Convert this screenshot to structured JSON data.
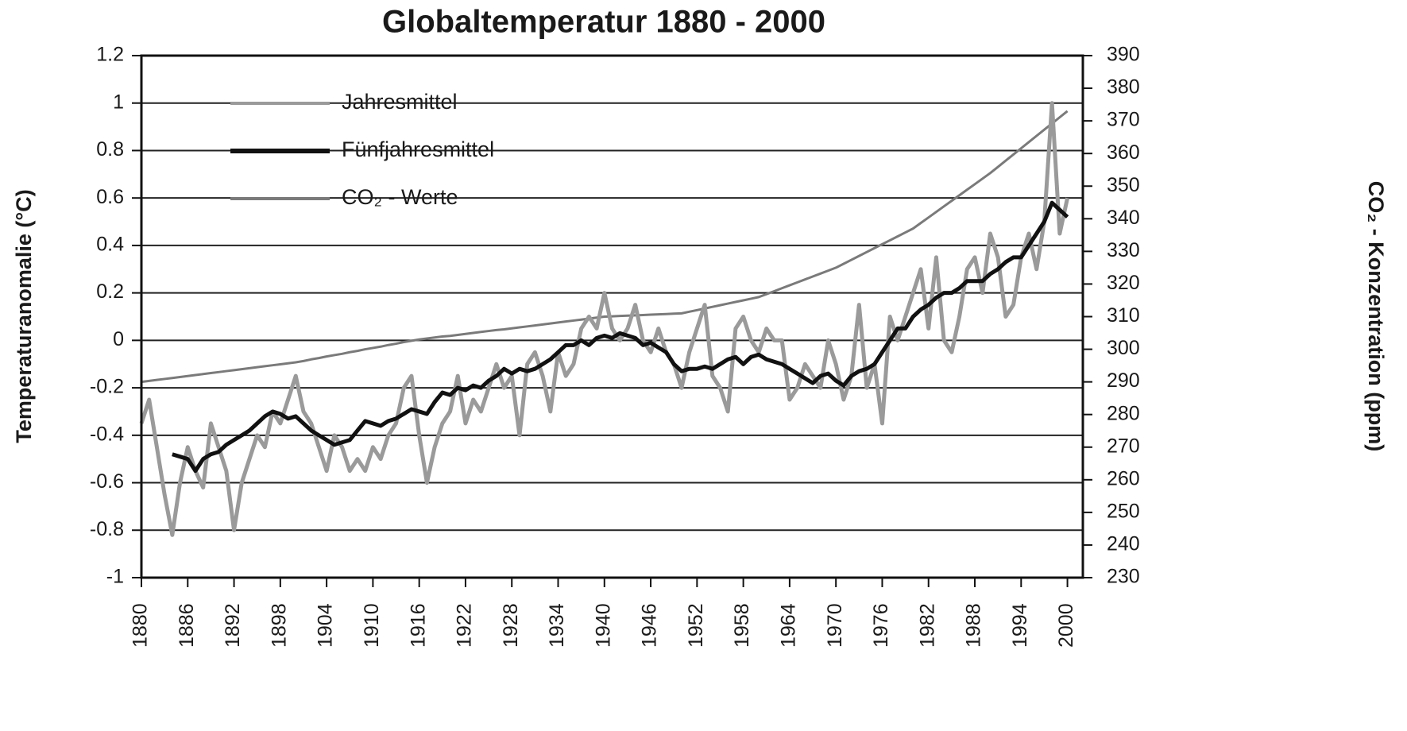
{
  "chart_data": {
    "type": "line",
    "title": "Globaltemperatur 1880 - 2000",
    "ylabel": "Temperaturanomalie (°C)",
    "y2label": "CO₂ - Konzentration (ppm)",
    "legend": "upper left",
    "grid": true,
    "x": [
      1880,
      1881,
      1882,
      1883,
      1884,
      1885,
      1886,
      1887,
      1888,
      1889,
      1890,
      1891,
      1892,
      1893,
      1894,
      1895,
      1896,
      1897,
      1898,
      1899,
      1900,
      1901,
      1902,
      1903,
      1904,
      1905,
      1906,
      1907,
      1908,
      1909,
      1910,
      1911,
      1912,
      1913,
      1914,
      1915,
      1916,
      1917,
      1918,
      1919,
      1920,
      1921,
      1922,
      1923,
      1924,
      1925,
      1926,
      1927,
      1928,
      1929,
      1930,
      1931,
      1932,
      1933,
      1934,
      1935,
      1936,
      1937,
      1938,
      1939,
      1940,
      1941,
      1942,
      1943,
      1944,
      1945,
      1946,
      1947,
      1948,
      1949,
      1950,
      1951,
      1952,
      1953,
      1954,
      1955,
      1956,
      1957,
      1958,
      1959,
      1960,
      1961,
      1962,
      1963,
      1964,
      1965,
      1966,
      1967,
      1968,
      1969,
      1970,
      1971,
      1972,
      1973,
      1974,
      1975,
      1976,
      1977,
      1978,
      1979,
      1980,
      1981,
      1982,
      1983,
      1984,
      1985,
      1986,
      1987,
      1988,
      1989,
      1990,
      1991,
      1992,
      1993,
      1994,
      1995,
      1996,
      1997,
      1998,
      1999,
      2000
    ],
    "xlim": [
      1880,
      2002
    ],
    "xticks": [
      1880,
      1886,
      1892,
      1898,
      1904,
      1910,
      1916,
      1922,
      1928,
      1934,
      1940,
      1946,
      1952,
      1958,
      1964,
      1970,
      1976,
      1982,
      1988,
      1994,
      2000
    ],
    "ylim": [
      -1,
      1.2
    ],
    "yticks": [
      -1,
      -0.8,
      -0.6,
      -0.4,
      -0.2,
      0,
      0.2,
      0.4,
      0.6,
      0.8,
      1,
      1.2
    ],
    "y2lim": [
      230,
      390
    ],
    "y2ticks": [
      230,
      240,
      250,
      260,
      270,
      280,
      290,
      300,
      310,
      320,
      330,
      340,
      350,
      360,
      370,
      380,
      390
    ],
    "series": [
      {
        "name": "Jahresmittel",
        "color": "#9a9a9a",
        "values": [
          -0.35,
          -0.25,
          -0.45,
          -0.65,
          -0.82,
          -0.6,
          -0.45,
          -0.55,
          -0.62,
          -0.35,
          -0.45,
          -0.55,
          -0.8,
          -0.6,
          -0.5,
          -0.4,
          -0.45,
          -0.3,
          -0.35,
          -0.25,
          -0.15,
          -0.3,
          -0.35,
          -0.45,
          -0.55,
          -0.4,
          -0.45,
          -0.55,
          -0.5,
          -0.55,
          -0.45,
          -0.5,
          -0.4,
          -0.35,
          -0.2,
          -0.15,
          -0.4,
          -0.6,
          -0.45,
          -0.35,
          -0.3,
          -0.15,
          -0.35,
          -0.25,
          -0.3,
          -0.2,
          -0.1,
          -0.2,
          -0.15,
          -0.4,
          -0.1,
          -0.05,
          -0.15,
          -0.3,
          -0.05,
          -0.15,
          -0.1,
          0.05,
          0.1,
          0.05,
          0.2,
          0.05,
          0,
          0.05,
          0.15,
          0,
          -0.05,
          0.05,
          -0.05,
          -0.1,
          -0.2,
          -0.05,
          0.05,
          0.15,
          -0.15,
          -0.2,
          -0.3,
          0.05,
          0.1,
          0,
          -0.05,
          0.05,
          0,
          0,
          -0.25,
          -0.2,
          -0.1,
          -0.15,
          -0.2,
          0,
          -0.1,
          -0.25,
          -0.15,
          0.15,
          -0.2,
          -0.1,
          -0.35,
          0.1,
          0,
          0.1,
          0.2,
          0.3,
          0.05,
          0.35,
          0,
          -0.05,
          0.1,
          0.3,
          0.35,
          0.2,
          0.45,
          0.35,
          0.1,
          0.15,
          0.35,
          0.45,
          0.3,
          0.5,
          1,
          0.45,
          0.6
        ]
      },
      {
        "name": "Fünfjahresmittel",
        "color": "#111111",
        "values": [
          null,
          null,
          null,
          null,
          -0.48,
          -0.49,
          -0.5,
          -0.55,
          -0.5,
          -0.48,
          -0.47,
          -0.44,
          -0.42,
          -0.4,
          -0.38,
          -0.35,
          -0.32,
          -0.3,
          -0.31,
          -0.33,
          -0.32,
          -0.35,
          -0.38,
          -0.4,
          -0.42,
          -0.44,
          -0.43,
          -0.42,
          -0.38,
          -0.34,
          -0.35,
          -0.36,
          -0.34,
          -0.33,
          -0.31,
          -0.29,
          -0.3,
          -0.31,
          -0.26,
          -0.22,
          -0.23,
          -0.2,
          -0.21,
          -0.19,
          -0.2,
          -0.17,
          -0.15,
          -0.12,
          -0.14,
          -0.12,
          -0.13,
          -0.12,
          -0.1,
          -0.08,
          -0.05,
          -0.02,
          -0.02,
          0,
          -0.02,
          0.01,
          0.02,
          0.01,
          0.03,
          0.02,
          0.01,
          -0.02,
          -0.01,
          -0.03,
          -0.05,
          -0.1,
          -0.13,
          -0.12,
          -0.12,
          -0.11,
          -0.12,
          -0.1,
          -0.08,
          -0.07,
          -0.1,
          -0.07,
          -0.06,
          -0.08,
          -0.09,
          -0.1,
          -0.12,
          -0.14,
          -0.16,
          -0.18,
          -0.15,
          -0.14,
          -0.17,
          -0.19,
          -0.15,
          -0.13,
          -0.12,
          -0.1,
          -0.05,
          0,
          0.05,
          0.05,
          0.1,
          0.13,
          0.15,
          0.18,
          0.2,
          0.2,
          0.22,
          0.25,
          0.25,
          0.25,
          0.28,
          0.3,
          0.33,
          0.35,
          0.35,
          0.4,
          0.45,
          0.5,
          0.58,
          0.55,
          0.52
        ]
      },
      {
        "name": "CO₂ - Werte",
        "color": "#7a7a7a",
        "axis": "y2",
        "values": [
          290,
          290.3,
          290.6,
          290.9,
          291.2,
          291.5,
          291.8,
          292.1,
          292.4,
          292.7,
          293,
          293.3,
          293.6,
          293.9,
          294.2,
          294.5,
          294.8,
          295.1,
          295.4,
          295.7,
          296,
          296.4,
          296.9,
          297.3,
          297.8,
          298.2,
          298.6,
          299.1,
          299.5,
          300,
          300.4,
          300.8,
          301.3,
          301.7,
          302.2,
          302.6,
          303,
          303.3,
          303.6,
          303.9,
          304.1,
          304.4,
          304.7,
          305,
          305.3,
          305.6,
          305.9,
          306.1,
          306.4,
          306.7,
          307,
          307.3,
          307.6,
          307.9,
          308.2,
          308.5,
          308.8,
          309.1,
          309.4,
          309.7,
          310,
          310.1,
          310.2,
          310.3,
          310.4,
          310.5,
          310.6,
          310.7,
          310.8,
          310.9,
          311,
          311.5,
          312,
          312.5,
          313,
          313.5,
          314,
          314.5,
          315,
          315.5,
          316,
          316.9,
          317.8,
          318.7,
          319.6,
          320.5,
          321.4,
          322.3,
          323.2,
          324.1,
          325,
          326.2,
          327.4,
          328.6,
          329.8,
          331,
          332.2,
          333.4,
          334.6,
          335.8,
          337,
          338.7,
          340.4,
          342.1,
          343.8,
          345.5,
          347.2,
          348.9,
          350.6,
          352.3,
          354,
          355.9,
          357.8,
          359.7,
          361.6,
          363.5,
          365.4,
          367.3,
          369.2,
          371.1,
          373
        ]
      }
    ]
  }
}
